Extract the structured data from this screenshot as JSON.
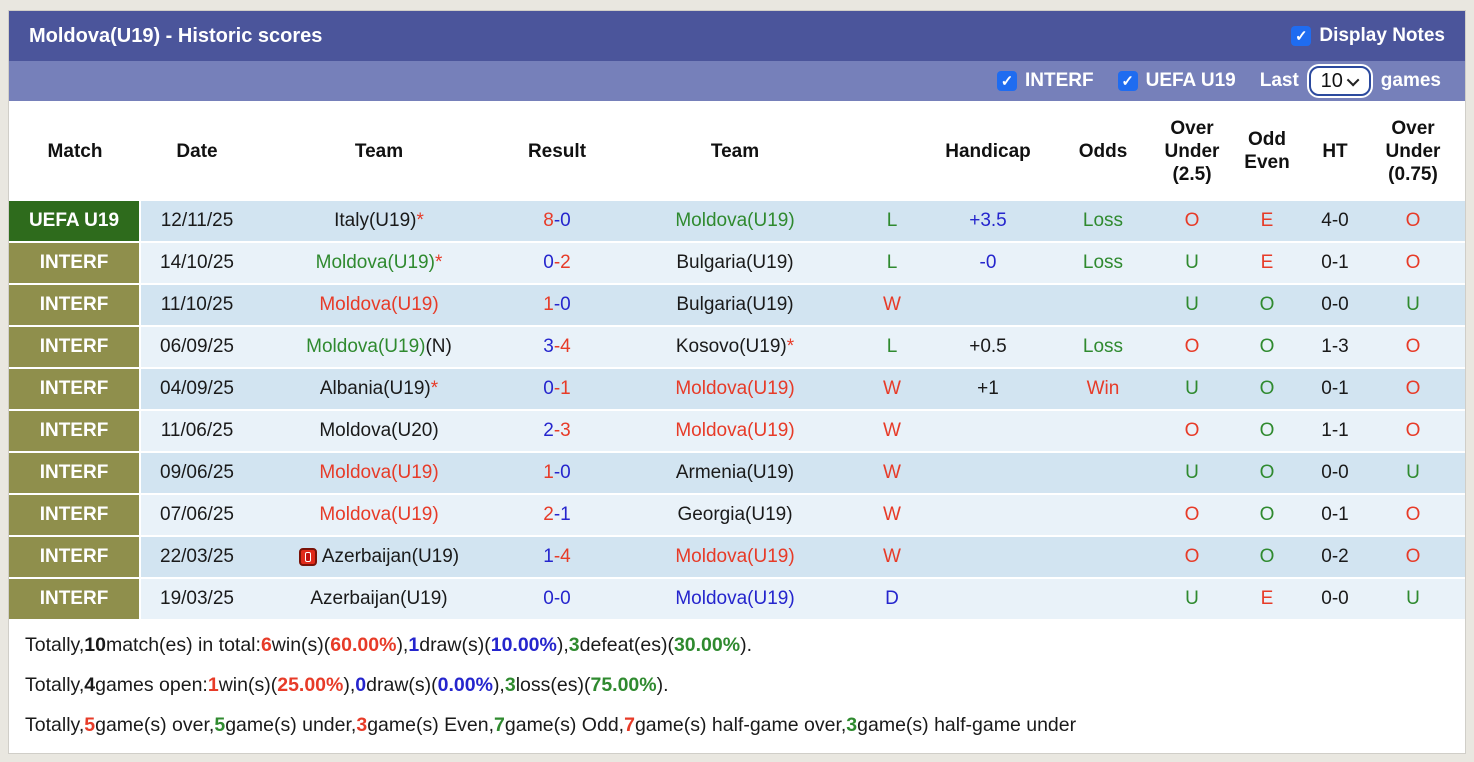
{
  "title_bar": {
    "title": "Moldova(U19) - Historic scores",
    "display_notes_label": "Display Notes",
    "display_notes_checked": true
  },
  "filter_bar": {
    "checkboxes": [
      {
        "label": "INTERF",
        "checked": true
      },
      {
        "label": "UEFA U19",
        "checked": true
      }
    ],
    "last_label": "Last",
    "last_value": "10",
    "games_label": "games"
  },
  "colors": {
    "red": "#e73b28",
    "green": "#2f8a2f",
    "blue": "#2525cd",
    "black": "#1a1a1a",
    "uefa_bg": "#2e6b1c",
    "interf_bg": "#8f8f4c",
    "row_odd": "#d2e4f1",
    "row_even": "#e9f2f9",
    "title_bg": "#4b559b",
    "filter_bg": "#7680ba",
    "checkbox_blue": "#1f6cf0"
  },
  "table": {
    "columns": [
      {
        "id": "league",
        "lines": [
          "Match"
        ]
      },
      {
        "id": "date",
        "lines": [
          "Date"
        ]
      },
      {
        "id": "home",
        "lines": [
          "Team"
        ]
      },
      {
        "id": "result",
        "lines": [
          "Result"
        ]
      },
      {
        "id": "away",
        "lines": [
          "Team"
        ]
      },
      {
        "id": "wld",
        "lines": []
      },
      {
        "id": "handicap",
        "lines": [
          "Handicap"
        ]
      },
      {
        "id": "odds",
        "lines": [
          "Odds"
        ]
      },
      {
        "id": "ou25",
        "lines": [
          "Over",
          "Under",
          "(2.5)"
        ]
      },
      {
        "id": "oddeven",
        "lines": [
          "Odd",
          "Even"
        ]
      },
      {
        "id": "ht",
        "lines": [
          "HT"
        ]
      },
      {
        "id": "ou075",
        "lines": [
          "Over",
          "Under",
          "(0.75)"
        ]
      }
    ],
    "rows": [
      {
        "league": "UEFA U19",
        "league_style": "uefa",
        "date": "12/11/25",
        "home": {
          "text": "Italy(U19)",
          "color": "black",
          "star": true
        },
        "result": {
          "home": "8",
          "home_color": "red",
          "away": "0",
          "away_color": "blue"
        },
        "away": {
          "text": "Moldova(U19)",
          "color": "green"
        },
        "wld": {
          "text": "L",
          "color": "green"
        },
        "handicap": {
          "text": "+3.5",
          "color": "blue"
        },
        "odds": {
          "text": "Loss",
          "color": "green"
        },
        "ou25": {
          "text": "O",
          "color": "red"
        },
        "oddeven": {
          "text": "E",
          "color": "red"
        },
        "ht": "4-0",
        "ou075": {
          "text": "O",
          "color": "red"
        }
      },
      {
        "league": "INTERF",
        "league_style": "interf",
        "date": "14/10/25",
        "home": {
          "text": "Moldova(U19)",
          "color": "green",
          "star": true
        },
        "result": {
          "home": "0",
          "home_color": "blue",
          "away": "2",
          "away_color": "red"
        },
        "away": {
          "text": "Bulgaria(U19)",
          "color": "black"
        },
        "wld": {
          "text": "L",
          "color": "green"
        },
        "handicap": {
          "text": "-0",
          "color": "blue"
        },
        "odds": {
          "text": "Loss",
          "color": "green"
        },
        "ou25": {
          "text": "U",
          "color": "green"
        },
        "oddeven": {
          "text": "E",
          "color": "red"
        },
        "ht": "0-1",
        "ou075": {
          "text": "O",
          "color": "red"
        }
      },
      {
        "league": "INTERF",
        "league_style": "interf",
        "date": "11/10/25",
        "home": {
          "text": "Moldova(U19)",
          "color": "red"
        },
        "result": {
          "home": "1",
          "home_color": "red",
          "away": "0",
          "away_color": "blue"
        },
        "away": {
          "text": "Bulgaria(U19)",
          "color": "black"
        },
        "wld": {
          "text": "W",
          "color": "red"
        },
        "handicap": {
          "text": "",
          "color": "black"
        },
        "odds": {
          "text": "",
          "color": "black"
        },
        "ou25": {
          "text": "U",
          "color": "green"
        },
        "oddeven": {
          "text": "O",
          "color": "green"
        },
        "ht": "0-0",
        "ou075": {
          "text": "U",
          "color": "green"
        }
      },
      {
        "league": "INTERF",
        "league_style": "interf",
        "date": "06/09/25",
        "home": {
          "text": "Moldova(U19)",
          "color": "green",
          "suffix": "(N)"
        },
        "result": {
          "home": "3",
          "home_color": "blue",
          "away": "4",
          "away_color": "red"
        },
        "away": {
          "text": "Kosovo(U19)",
          "color": "black",
          "star": true
        },
        "wld": {
          "text": "L",
          "color": "green"
        },
        "handicap": {
          "text": "+0.5",
          "color": "black"
        },
        "odds": {
          "text": "Loss",
          "color": "green"
        },
        "ou25": {
          "text": "O",
          "color": "red"
        },
        "oddeven": {
          "text": "O",
          "color": "green"
        },
        "ht": "1-3",
        "ou075": {
          "text": "O",
          "color": "red"
        }
      },
      {
        "league": "INTERF",
        "league_style": "interf",
        "date": "04/09/25",
        "home": {
          "text": "Albania(U19)",
          "color": "black",
          "star": true
        },
        "result": {
          "home": "0",
          "home_color": "blue",
          "away": "1",
          "away_color": "red"
        },
        "away": {
          "text": "Moldova(U19)",
          "color": "red"
        },
        "wld": {
          "text": "W",
          "color": "red"
        },
        "handicap": {
          "text": "+1",
          "color": "black"
        },
        "odds": {
          "text": "Win",
          "color": "red"
        },
        "ou25": {
          "text": "U",
          "color": "green"
        },
        "oddeven": {
          "text": "O",
          "color": "green"
        },
        "ht": "0-1",
        "ou075": {
          "text": "O",
          "color": "red"
        }
      },
      {
        "league": "INTERF",
        "league_style": "interf",
        "date": "11/06/25",
        "home": {
          "text": "Moldova(U20)",
          "color": "black"
        },
        "result": {
          "home": "2",
          "home_color": "blue",
          "away": "3",
          "away_color": "red"
        },
        "away": {
          "text": "Moldova(U19)",
          "color": "red"
        },
        "wld": {
          "text": "W",
          "color": "red"
        },
        "handicap": {
          "text": "",
          "color": "black"
        },
        "odds": {
          "text": "",
          "color": "black"
        },
        "ou25": {
          "text": "O",
          "color": "red"
        },
        "oddeven": {
          "text": "O",
          "color": "green"
        },
        "ht": "1-1",
        "ou075": {
          "text": "O",
          "color": "red"
        }
      },
      {
        "league": "INTERF",
        "league_style": "interf",
        "date": "09/06/25",
        "home": {
          "text": "Moldova(U19)",
          "color": "red"
        },
        "result": {
          "home": "1",
          "home_color": "red",
          "away": "0",
          "away_color": "blue"
        },
        "away": {
          "text": "Armenia(U19)",
          "color": "black"
        },
        "wld": {
          "text": "W",
          "color": "red"
        },
        "handicap": {
          "text": "",
          "color": "black"
        },
        "odds": {
          "text": "",
          "color": "black"
        },
        "ou25": {
          "text": "U",
          "color": "green"
        },
        "oddeven": {
          "text": "O",
          "color": "green"
        },
        "ht": "0-0",
        "ou075": {
          "text": "U",
          "color": "green"
        }
      },
      {
        "league": "INTERF",
        "league_style": "interf",
        "date": "07/06/25",
        "home": {
          "text": "Moldova(U19)",
          "color": "red"
        },
        "result": {
          "home": "2",
          "home_color": "red",
          "away": "1",
          "away_color": "blue"
        },
        "away": {
          "text": "Georgia(U19)",
          "color": "black"
        },
        "wld": {
          "text": "W",
          "color": "red"
        },
        "handicap": {
          "text": "",
          "color": "black"
        },
        "odds": {
          "text": "",
          "color": "black"
        },
        "ou25": {
          "text": "O",
          "color": "red"
        },
        "oddeven": {
          "text": "O",
          "color": "green"
        },
        "ht": "0-1",
        "ou075": {
          "text": "O",
          "color": "red"
        }
      },
      {
        "league": "INTERF",
        "league_style": "interf",
        "date": "22/03/25",
        "home": {
          "text": "Azerbaijan(U19)",
          "color": "black",
          "icon": "red-card"
        },
        "result": {
          "home": "1",
          "home_color": "blue",
          "away": "4",
          "away_color": "red"
        },
        "away": {
          "text": "Moldova(U19)",
          "color": "red"
        },
        "wld": {
          "text": "W",
          "color": "red"
        },
        "handicap": {
          "text": "",
          "color": "black"
        },
        "odds": {
          "text": "",
          "color": "black"
        },
        "ou25": {
          "text": "O",
          "color": "red"
        },
        "oddeven": {
          "text": "O",
          "color": "green"
        },
        "ht": "0-2",
        "ou075": {
          "text": "O",
          "color": "red"
        }
      },
      {
        "league": "INTERF",
        "league_style": "interf",
        "date": "19/03/25",
        "home": {
          "text": "Azerbaijan(U19)",
          "color": "black"
        },
        "result": {
          "home": "0",
          "home_color": "blue",
          "away": "0",
          "away_color": "blue"
        },
        "away": {
          "text": "Moldova(U19)",
          "color": "blue"
        },
        "wld": {
          "text": "D",
          "color": "blue"
        },
        "handicap": {
          "text": "",
          "color": "black"
        },
        "odds": {
          "text": "",
          "color": "black"
        },
        "ou25": {
          "text": "U",
          "color": "green"
        },
        "oddeven": {
          "text": "E",
          "color": "red"
        },
        "ht": "0-0",
        "ou075": {
          "text": "U",
          "color": "green"
        }
      }
    ]
  },
  "summary": {
    "lines": [
      [
        {
          "t": "Totally, ",
          "c": "black"
        },
        {
          "t": "10",
          "c": "black",
          "b": true
        },
        {
          "t": " match(es) in total: ",
          "c": "black"
        },
        {
          "t": "6",
          "c": "red",
          "b": true
        },
        {
          "t": " win(s)(",
          "c": "black"
        },
        {
          "t": "60.00%",
          "c": "red",
          "b": true
        },
        {
          "t": "), ",
          "c": "black"
        },
        {
          "t": "1",
          "c": "blue",
          "b": true
        },
        {
          "t": " draw(s)(",
          "c": "black"
        },
        {
          "t": "10.00%",
          "c": "blue",
          "b": true
        },
        {
          "t": "), ",
          "c": "black"
        },
        {
          "t": "3",
          "c": "green",
          "b": true
        },
        {
          "t": " defeat(es)(",
          "c": "black"
        },
        {
          "t": "30.00%",
          "c": "green",
          "b": true
        },
        {
          "t": ").",
          "c": "black"
        }
      ],
      [
        {
          "t": "Totally, ",
          "c": "black"
        },
        {
          "t": "4",
          "c": "black",
          "b": true
        },
        {
          "t": " games open: ",
          "c": "black"
        },
        {
          "t": "1",
          "c": "red",
          "b": true
        },
        {
          "t": " win(s)(",
          "c": "black"
        },
        {
          "t": "25.00%",
          "c": "red",
          "b": true
        },
        {
          "t": "), ",
          "c": "black"
        },
        {
          "t": "0",
          "c": "blue",
          "b": true
        },
        {
          "t": " draw(s)(",
          "c": "black"
        },
        {
          "t": "0.00%",
          "c": "blue",
          "b": true
        },
        {
          "t": "), ",
          "c": "black"
        },
        {
          "t": "3",
          "c": "green",
          "b": true
        },
        {
          "t": " loss(es)(",
          "c": "black"
        },
        {
          "t": "75.00%",
          "c": "green",
          "b": true
        },
        {
          "t": ").",
          "c": "black"
        }
      ],
      [
        {
          "t": "Totally, ",
          "c": "black"
        },
        {
          "t": "5",
          "c": "red",
          "b": true
        },
        {
          "t": " game(s) over, ",
          "c": "black"
        },
        {
          "t": "5",
          "c": "green",
          "b": true
        },
        {
          "t": " game(s) under, ",
          "c": "black"
        },
        {
          "t": "3",
          "c": "red",
          "b": true
        },
        {
          "t": " game(s) Even, ",
          "c": "black"
        },
        {
          "t": "7",
          "c": "green",
          "b": true
        },
        {
          "t": " game(s) Odd, ",
          "c": "black"
        },
        {
          "t": "7",
          "c": "red",
          "b": true
        },
        {
          "t": " game(s) half-game over, ",
          "c": "black"
        },
        {
          "t": "3",
          "c": "green",
          "b": true
        },
        {
          "t": " game(s) half-game under",
          "c": "black"
        }
      ]
    ]
  }
}
